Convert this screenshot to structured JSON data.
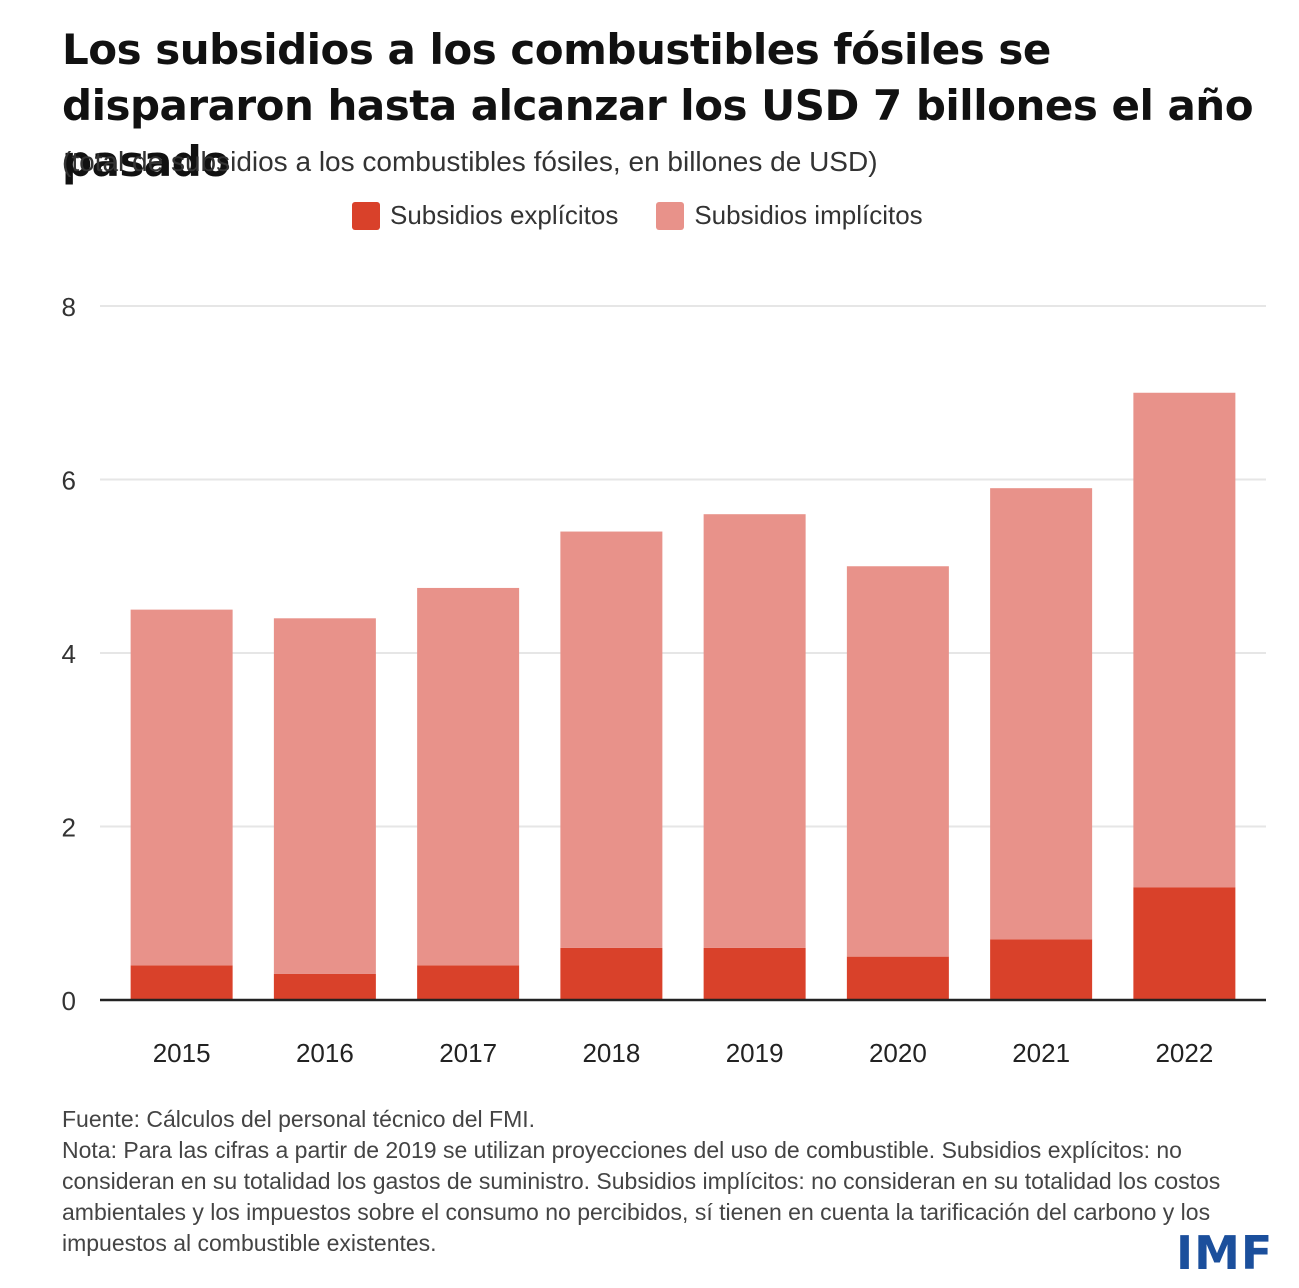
{
  "header": {
    "title": "Los subsidios a los combustibles fósiles se dispararon hasta alcanzar los USD 7 billones el año pasado",
    "subtitle": "(total de subsidios a los combustibles fósiles, en billones de USD)"
  },
  "colors": {
    "explicit": "#d9412a",
    "implicit": "#e8928a",
    "grid": "#e6e6e6",
    "axis": "#222222",
    "logo": "#1b4f9c"
  },
  "chart_data": {
    "type": "bar",
    "stacked": true,
    "title": "Los subsidios a los combustibles fósiles se dispararon hasta alcanzar los USD 7 billones el año pasado",
    "ylabel": "(total de subsidios a los combustibles fósiles, en billones de USD)",
    "xlabel": "",
    "categories": [
      "2015",
      "2016",
      "2017",
      "2018",
      "2019",
      "2020",
      "2021",
      "2022"
    ],
    "series": [
      {
        "name": "Subsidios explícitos",
        "color": "#d9412a",
        "values": [
          0.4,
          0.3,
          0.4,
          0.6,
          0.6,
          0.5,
          0.7,
          1.3
        ]
      },
      {
        "name": "Subsidios implícitos",
        "color": "#e8928a",
        "values": [
          4.1,
          4.1,
          4.35,
          4.8,
          5.0,
          4.5,
          5.2,
          5.7
        ]
      }
    ],
    "ylim": [
      0,
      8
    ],
    "yticks": [
      0,
      2,
      4,
      6,
      8
    ],
    "grid": true,
    "legend": "top-center"
  },
  "footer": {
    "source": "Fuente: Cálculos del personal técnico del FMI.",
    "note": "Nota: Para las cifras a partir de 2019 se utilizan proyecciones del uso de combustible. Subsidios explícitos: no consideran en su totalidad los gastos de suministro. Subsidios implícitos: no consideran en su totalidad los costos ambientales y los impuestos sobre el consumo no percibidos, sí tienen en cuenta la tarificación del carbono y los impuestos al combustible existentes."
  },
  "logo": {
    "text": "IMF"
  }
}
